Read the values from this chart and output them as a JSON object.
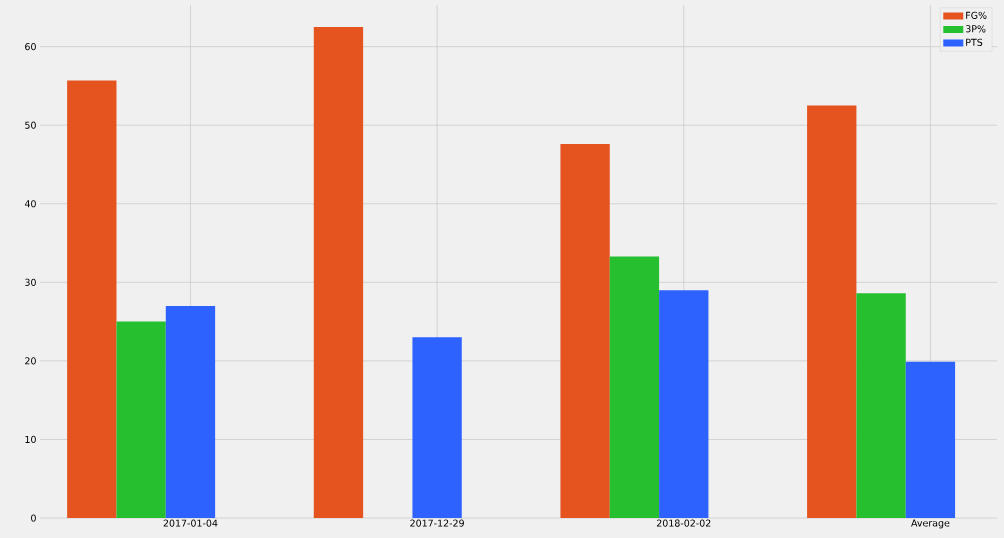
{
  "chart_data": {
    "type": "bar",
    "categories": [
      "2017-01-04",
      "2017-12-29",
      "2018-02-02",
      "Average"
    ],
    "series": [
      {
        "name": "FG%",
        "color": "#e5531f",
        "values": [
          55.7,
          62.5,
          47.6,
          52.5
        ]
      },
      {
        "name": "3P%",
        "color": "#25bf2f",
        "values": [
          25.0,
          0,
          33.3,
          28.6
        ]
      },
      {
        "name": "PTS",
        "color": "#2d62ff",
        "values": [
          27.0,
          23.0,
          29.0,
          19.9
        ]
      }
    ],
    "ylim": [
      0,
      65.3
    ],
    "yticks": [
      0,
      10,
      20,
      30,
      40,
      50,
      60
    ],
    "grid": true,
    "legend": "top right"
  }
}
